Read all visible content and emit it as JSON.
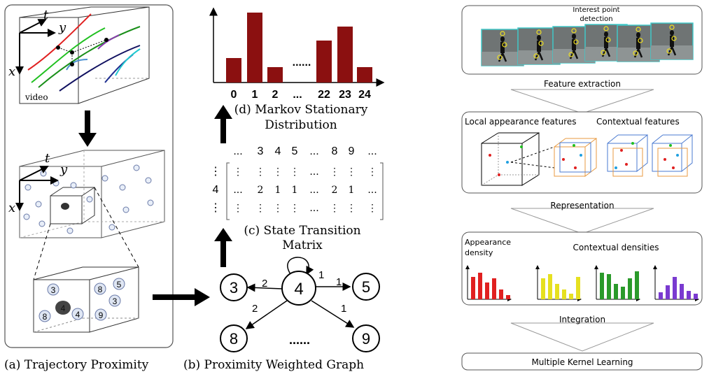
{
  "panel_a": {
    "axis_t": "t",
    "axis_y": "y",
    "axis_x": "x",
    "video_label": "video",
    "axis2_t": "t",
    "axis2_y": "y",
    "axis2_x": "x",
    "zoom_nodes": [
      "3",
      "8",
      "5",
      "3",
      "4",
      "4",
      "9",
      "8"
    ],
    "caption": "(a) Trajectory Proximity"
  },
  "panel_b": {
    "caption": "(b) Proximity Weighted Graph",
    "nodes": [
      {
        "id": "3"
      },
      {
        "id": "4"
      },
      {
        "id": "5"
      },
      {
        "id": "8"
      },
      {
        "id": "9"
      }
    ],
    "edge_labels": {
      "self": "1",
      "to3": "2",
      "to5": "1",
      "to8": "2",
      "to9": "1"
    },
    "ellipsis": "......"
  },
  "panel_c": {
    "caption_line1": "(c) State Transition",
    "caption_line2": "Matrix",
    "col_headers": [
      "...",
      "3",
      "4",
      "5",
      "...",
      "8",
      "9",
      "..."
    ],
    "row_headers": [
      "⋮",
      "4",
      "⋮"
    ],
    "rows": [
      [
        "⋮",
        "⋮",
        "⋮",
        "⋮",
        "...",
        "⋮",
        "⋮",
        "⋮"
      ],
      [
        "...",
        "2",
        "1",
        "1",
        "...",
        "2",
        "1",
        "..."
      ],
      [
        "⋮",
        "⋮",
        "⋮",
        "⋮",
        "...",
        "⋮",
        "⋮",
        "⋮"
      ]
    ]
  },
  "panel_d": {
    "caption_line1": "(d) Markov Stationary",
    "caption_line2": "Distribution",
    "bar_color": "#8b1010",
    "chart": {
      "categories": [
        "0",
        "1",
        "2",
        "...",
        "22",
        "23",
        "24"
      ],
      "values": [
        0.35,
        1.0,
        0.22,
        null,
        0.6,
        0.8,
        0.22
      ]
    },
    "dots": "......"
  },
  "pipeline": {
    "interest_label_1": "Interest point",
    "interest_label_2": "detection",
    "feature_extraction": "Feature extraction",
    "local_features": "Local appearance features",
    "contextual_features": "Contextual features",
    "representation": "Representation",
    "appearance_density_1": "Appearance",
    "appearance_density_2": "density",
    "contextual_densities": "Contextual densities",
    "integration": "Integration",
    "mkl": "Multiple Kernel Learning",
    "hist_colors": [
      "#e02020",
      "#e6e020",
      "#2a9a2a",
      "#7a3ad0"
    ],
    "hist_values": [
      [
        0.8,
        0.95,
        0.6,
        0.75,
        0.35,
        0.15
      ],
      [
        0.75,
        0.9,
        0.55,
        0.35,
        0.2,
        0.8
      ],
      [
        0.95,
        0.9,
        0.55,
        0.45,
        0.75,
        1.0
      ],
      [
        0.25,
        0.5,
        0.8,
        0.55,
        0.3,
        0.2
      ]
    ]
  }
}
